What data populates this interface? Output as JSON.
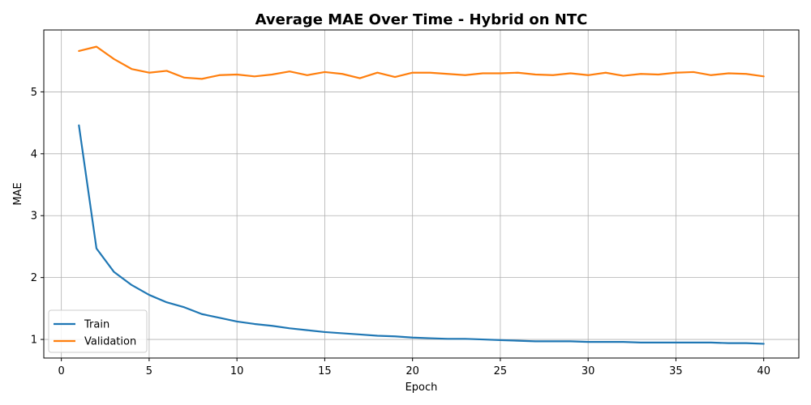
{
  "chart_data": {
    "type": "line",
    "title": "Average MAE Over Time - Hybrid on NTC",
    "xlabel": "Epoch",
    "ylabel": "MAE",
    "xlim": [
      -1,
      42
    ],
    "ylim": [
      0.7,
      6.0
    ],
    "xticks": [
      0,
      5,
      10,
      15,
      20,
      25,
      30,
      35,
      40
    ],
    "yticks": [
      1,
      2,
      3,
      4,
      5
    ],
    "grid": true,
    "legend_position": "lower-left",
    "x": [
      1,
      2,
      3,
      4,
      5,
      6,
      7,
      8,
      9,
      10,
      11,
      12,
      13,
      14,
      15,
      16,
      17,
      18,
      19,
      20,
      21,
      22,
      23,
      24,
      25,
      26,
      27,
      28,
      29,
      30,
      31,
      32,
      33,
      34,
      35,
      36,
      37,
      38,
      39,
      40
    ],
    "series": [
      {
        "name": "Train",
        "color": "#1f77b4",
        "values": [
          4.46,
          2.47,
          2.09,
          1.88,
          1.72,
          1.6,
          1.52,
          1.41,
          1.35,
          1.29,
          1.25,
          1.22,
          1.18,
          1.15,
          1.12,
          1.1,
          1.08,
          1.06,
          1.05,
          1.03,
          1.02,
          1.01,
          1.01,
          1.0,
          0.99,
          0.98,
          0.97,
          0.97,
          0.97,
          0.96,
          0.96,
          0.96,
          0.95,
          0.95,
          0.95,
          0.95,
          0.95,
          0.94,
          0.94,
          0.93
        ]
      },
      {
        "name": "Validation",
        "color": "#ff7f0e",
        "values": [
          5.66,
          5.73,
          5.53,
          5.37,
          5.31,
          5.34,
          5.23,
          5.21,
          5.27,
          5.28,
          5.25,
          5.28,
          5.33,
          5.27,
          5.32,
          5.29,
          5.22,
          5.31,
          5.24,
          5.31,
          5.31,
          5.29,
          5.27,
          5.3,
          5.3,
          5.31,
          5.28,
          5.27,
          5.3,
          5.27,
          5.31,
          5.26,
          5.29,
          5.28,
          5.31,
          5.32,
          5.27,
          5.3,
          5.29,
          5.25
        ]
      }
    ]
  }
}
